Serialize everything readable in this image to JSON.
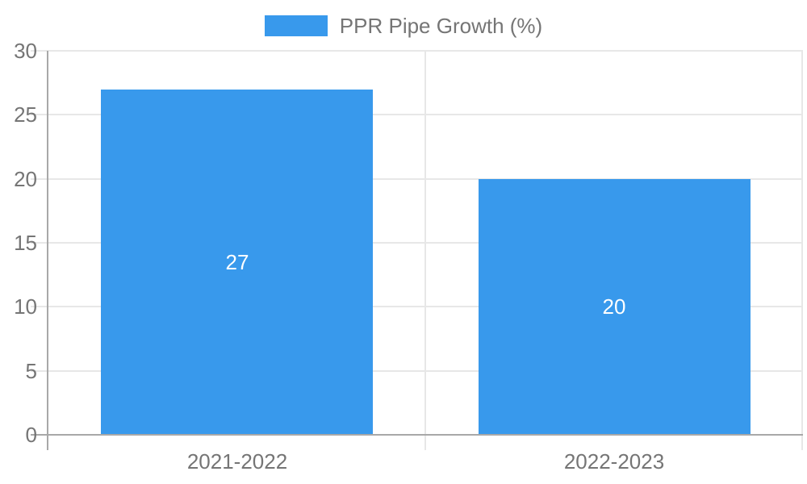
{
  "legend": {
    "label": "PPR Pipe Growth (%)",
    "swatch_color": "#3899ec"
  },
  "chart_data": {
    "type": "bar",
    "title": "PPR Pipe Growth (%)",
    "categories": [
      "2021-2022",
      "2022-2023"
    ],
    "values": [
      27,
      20
    ],
    "series": [
      {
        "name": "PPR Pipe Growth (%)",
        "values": [
          27,
          20
        ]
      }
    ],
    "data_labels": [
      "27",
      "20"
    ],
    "xlabel": "",
    "ylabel": "",
    "ylim": [
      0,
      30
    ],
    "yticks": [
      0,
      5,
      10,
      15,
      20,
      25,
      30
    ],
    "grid": true,
    "legend_position": "top-center",
    "bar_color": "#3899ec",
    "data_label_color": "#ffffff",
    "gridline_color": "#e7e7e7",
    "axis_color": "#a8a8a8",
    "text_color": "#757575"
  }
}
